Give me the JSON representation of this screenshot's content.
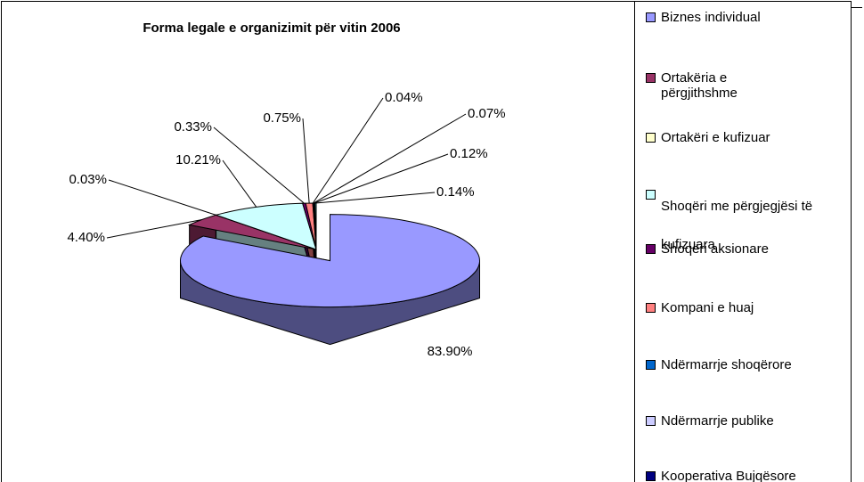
{
  "chart_data": {
    "type": "pie",
    "title": "Forma legale e organizimit për vitin 2006",
    "categories": [
      "Biznes individual",
      "Ortakëria e përgjithshme",
      "Ortakëri e kufizuar",
      "Shoqëri me përgjegjësi të kufizuara",
      "Shoqëri aksionare",
      "Kompani e huaj",
      "Ndërmarrje shoqërore",
      "Ndërmarrje publike",
      "Kooperativa Bujqësore",
      null
    ],
    "values": [
      83.9,
      4.4,
      0.03,
      10.21,
      0.33,
      0.75,
      0.04,
      0.07,
      0.12,
      0.14
    ],
    "value_labels": [
      "83.90%",
      "4.40%",
      "0.03%",
      "10.21%",
      "0.33%",
      "0.75%",
      "0.04%",
      "0.07%",
      "0.12%",
      "0.14%"
    ],
    "colors": [
      "#9999ff",
      "#993366",
      "#ffffcc",
      "#ccffff",
      "#660066",
      "#ff8080",
      "#0066cc",
      "#ccccff",
      "#000080",
      "#339999"
    ]
  }
}
